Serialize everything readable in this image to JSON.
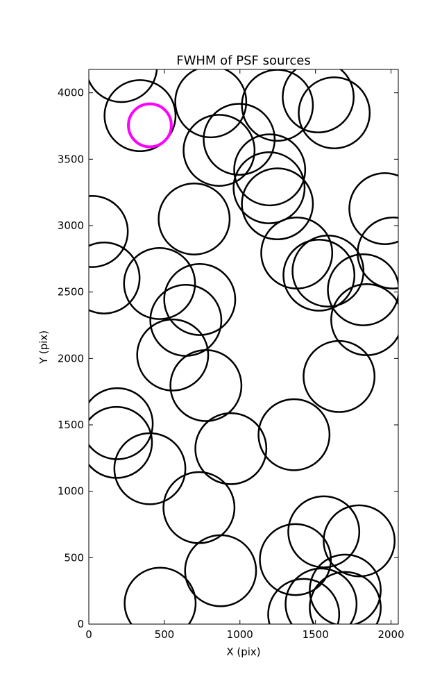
{
  "chart_data": {
    "type": "scatter",
    "title": "FWHM of PSF sources",
    "x_label": "X (pix)",
    "y_label": "Y (pix)",
    "xlim": [
      0,
      2048
    ],
    "ylim": [
      0,
      4176
    ],
    "xticks": [
      0,
      500,
      1000,
      1500,
      2000
    ],
    "yticks": [
      0,
      500,
      1000,
      1500,
      2000,
      2500,
      3000,
      3500,
      4000
    ],
    "series": [
      {
        "color": "#000000",
        "x": [
          216,
          339,
          807,
          1248,
          1518,
          1624,
          995,
          862,
          1197,
          1193,
          1248,
          1959,
          697,
          23,
          1376,
          2014,
          101,
          468,
          1523,
          1583,
          1817,
          734,
          1839,
          642,
          555,
          775,
          1656,
          188,
          183,
          1358,
          940,
          404,
          729,
          1555,
          1789,
          1367,
          872,
          472,
          1697,
          1422,
          1537,
          1697
        ],
        "values": [
          4198,
          3828,
          3932,
          3906,
          3969,
          3849,
          3650,
          3567,
          3420,
          3285,
          3164,
          3128,
          3050,
          2956,
          2794,
          2794,
          2606,
          2564,
          2627,
          2658,
          2517,
          2444,
          2292,
          2287,
          2026,
          1796,
          1864,
          1509,
          1368,
          1426,
          1321,
          1170,
          877,
          695,
          627,
          486,
          402,
          157,
          256,
          73,
          151,
          125
        ],
        "sizes": [
          235,
          235,
          235,
          235,
          235,
          235,
          235,
          235,
          235,
          235,
          235,
          235,
          235,
          235,
          235,
          235,
          235,
          235,
          235,
          235,
          235,
          235,
          235,
          235,
          235,
          235,
          235,
          235,
          235,
          235,
          235,
          235,
          235,
          235,
          235,
          235,
          235,
          235,
          235,
          235,
          235,
          235
        ]
      },
      {
        "color": "#ff00ff",
        "x": [
          404
        ],
        "values": [
          3755
        ],
        "sizes": [
          142
        ]
      }
    ]
  }
}
